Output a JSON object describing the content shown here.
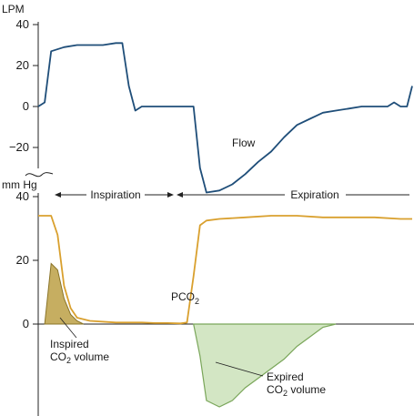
{
  "chart_data": [
    {
      "type": "line",
      "title": "",
      "ylabel": "LPM",
      "ylim": [
        -28,
        45
      ],
      "yticks": [
        "40",
        "20",
        "0",
        "−20"
      ],
      "series": [
        {
          "name": "Flow",
          "color": "#1f4e79",
          "x": [
            0,
            0.5,
            1,
            2,
            3,
            4,
            5,
            6,
            6.5,
            7,
            7.5,
            8,
            8.5,
            9,
            10,
            11,
            12,
            12.5,
            13,
            14,
            15,
            16,
            17,
            18,
            19,
            20,
            21,
            22,
            23,
            24,
            25,
            26,
            27,
            27.5,
            28,
            28.5,
            28.9
          ],
          "y": [
            0,
            2,
            27,
            29,
            30,
            30,
            30,
            31,
            31,
            10,
            -2,
            0,
            0,
            0,
            0,
            0,
            0,
            -30,
            -42,
            -41,
            -38,
            -33,
            -27,
            -22,
            -15,
            -9,
            -6,
            -3,
            -2,
            -1,
            0,
            0,
            0,
            2,
            0,
            0,
            10
          ]
        }
      ]
    },
    {
      "type": "area",
      "title": "",
      "ylabel": "mm Hg",
      "ylim": [
        -26,
        40
      ],
      "yticks": [
        "40",
        "20",
        "0"
      ],
      "series": [
        {
          "name": "PCO2",
          "color": "#d9a02e",
          "x": [
            0,
            0.5,
            1,
            1.5,
            2,
            2.5,
            3,
            4,
            6,
            8,
            9,
            10,
            11,
            11.5,
            12,
            12.5,
            13,
            14,
            16,
            18,
            20,
            22,
            24,
            26,
            28,
            28.9
          ],
          "y": [
            34,
            34,
            34,
            28,
            12,
            5,
            2,
            1,
            0.5,
            0.5,
            0.3,
            0.3,
            0.2,
            0.5,
            15,
            31,
            32.5,
            33,
            33.5,
            34,
            34,
            33.5,
            33.5,
            33.5,
            33,
            33
          ]
        },
        {
          "name": "Inspired CO2 volume",
          "color": "#b89a3a",
          "x": [
            0.5,
            1,
            1.5,
            2,
            2.5,
            3,
            3.5
          ],
          "y": [
            0,
            19,
            17,
            8,
            3,
            1,
            0
          ]
        },
        {
          "name": "Expired CO2 volume",
          "color": "#7aa65a",
          "x": [
            12,
            12.5,
            13,
            14,
            15,
            16,
            17,
            18,
            19,
            20,
            21,
            22,
            23
          ],
          "y": [
            0,
            -10,
            -24,
            -26,
            -24,
            -20,
            -17,
            -14,
            -11,
            -7,
            -4,
            -1,
            0
          ]
        }
      ]
    }
  ],
  "labels": {
    "flow": "Flow",
    "pco2_main": "PCO",
    "pco2_sub": "2",
    "inspiration": "Inspiration",
    "expiration": "Expiration",
    "inspired_line1": "Inspired",
    "inspired_line2_pre": "CO",
    "inspired_line2_sub": "2",
    "inspired_line2_post": " volume",
    "expired_line1": "Expired",
    "expired_line2_pre": "CO",
    "expired_line2_sub": "2",
    "expired_line2_post": " volume"
  }
}
